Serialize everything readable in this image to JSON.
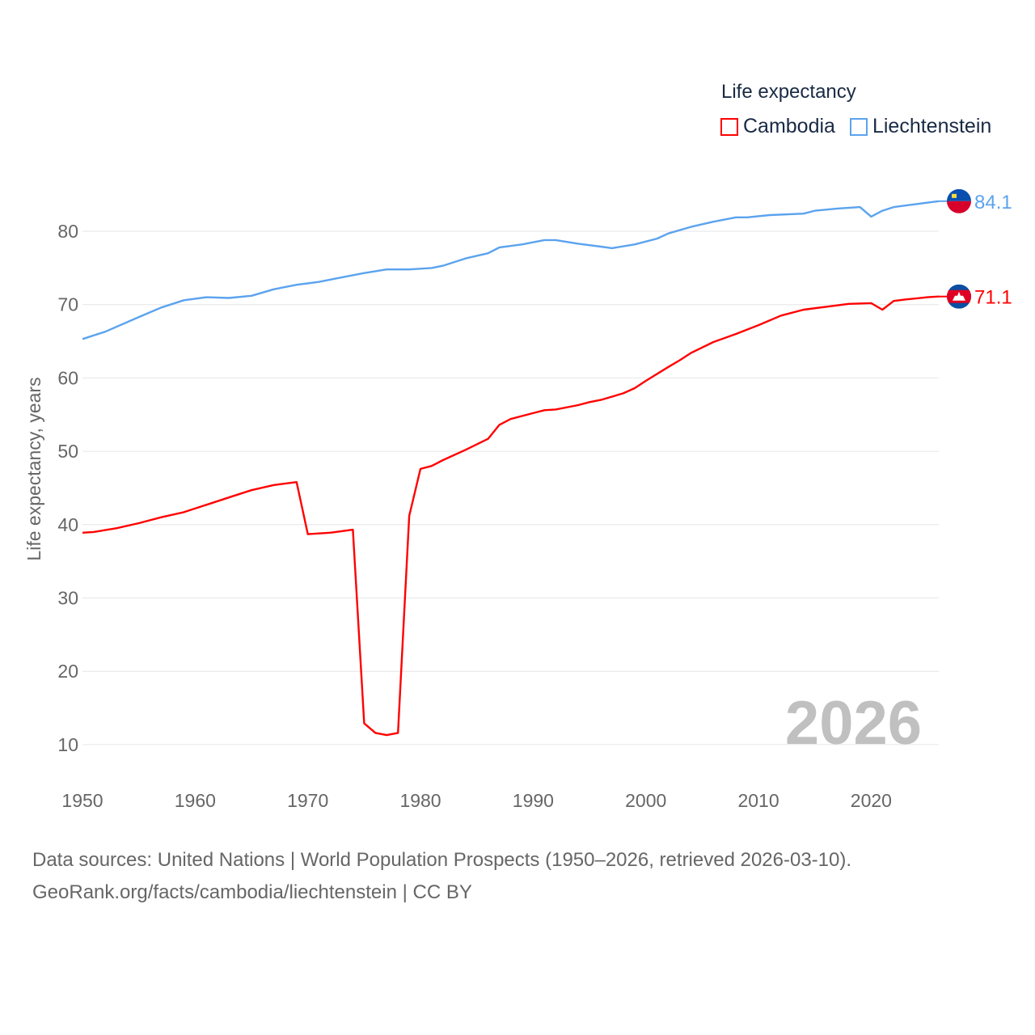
{
  "chart_data": {
    "type": "line",
    "legend_title": "Life expectancy",
    "ylabel": "Life expectancy, years",
    "xlabel": "",
    "xlim": [
      1950,
      2026
    ],
    "ylim": [
      5,
      90
    ],
    "xticks": [
      1950,
      1960,
      1970,
      1980,
      1990,
      2000,
      2010,
      2020
    ],
    "yticks": [
      10,
      20,
      30,
      40,
      50,
      60,
      70,
      80
    ],
    "grid": true,
    "legend_position": "top-right",
    "year_watermark": "2026",
    "series": [
      {
        "name": "Cambodia",
        "color": "#ff0000",
        "end_label": "71.1",
        "flag": "cambodia-flag",
        "x": [
          1950,
          1951,
          1953,
          1955,
          1957,
          1959,
          1961,
          1963,
          1965,
          1967,
          1969,
          1970,
          1972,
          1974,
          1975,
          1976,
          1977,
          1978,
          1979,
          1980,
          1981,
          1982,
          1984,
          1986,
          1987,
          1988,
          1990,
          1991,
          1992,
          1994,
          1995,
          1996,
          1998,
          1999,
          2000,
          2002,
          2003,
          2004,
          2006,
          2008,
          2010,
          2012,
          2014,
          2016,
          2018,
          2020,
          2021,
          2022,
          2023,
          2025,
          2026
        ],
        "y": [
          38.9,
          39.0,
          39.5,
          40.2,
          41.0,
          41.7,
          42.7,
          43.7,
          44.7,
          45.4,
          45.8,
          38.7,
          38.9,
          39.3,
          12.9,
          11.6,
          11.3,
          11.6,
          41.2,
          47.6,
          48.0,
          48.8,
          50.2,
          51.7,
          53.6,
          54.4,
          55.2,
          55.6,
          55.7,
          56.3,
          56.7,
          57.0,
          57.9,
          58.6,
          59.6,
          61.5,
          62.4,
          63.4,
          64.9,
          66.0,
          67.2,
          68.5,
          69.3,
          69.7,
          70.1,
          70.2,
          69.3,
          70.5,
          70.7,
          71.0,
          71.1
        ]
      },
      {
        "name": "Liechtenstein",
        "color": "#5ba3ee",
        "end_label": "84.1",
        "flag": "liechtenstein-flag",
        "x": [
          1950,
          1952,
          1955,
          1957,
          1959,
          1961,
          1963,
          1965,
          1967,
          1969,
          1971,
          1973,
          1975,
          1977,
          1979,
          1981,
          1982,
          1984,
          1986,
          1987,
          1989,
          1991,
          1992,
          1994,
          1996,
          1997,
          1999,
          2001,
          2002,
          2004,
          2006,
          2008,
          2009,
          2011,
          2014,
          2015,
          2017,
          2019,
          2020,
          2021,
          2022,
          2024,
          2026
        ],
        "y": [
          65.3,
          66.3,
          68.3,
          69.6,
          70.6,
          71.0,
          70.9,
          71.2,
          72.1,
          72.7,
          73.1,
          73.7,
          74.3,
          74.8,
          74.8,
          75.0,
          75.3,
          76.3,
          77.0,
          77.8,
          78.2,
          78.8,
          78.8,
          78.3,
          77.9,
          77.7,
          78.2,
          79.0,
          79.7,
          80.6,
          81.3,
          81.9,
          81.9,
          82.2,
          82.4,
          82.8,
          83.1,
          83.3,
          82.0,
          82.8,
          83.3,
          83.7,
          84.1
        ]
      }
    ]
  },
  "footer": {
    "source_line": "Data sources: United Nations | World Population Prospects (1950–2026, retrieved 2026-03-10).",
    "url_line": "GeoRank.org/facts/cambodia/liechtenstein | CC BY"
  }
}
